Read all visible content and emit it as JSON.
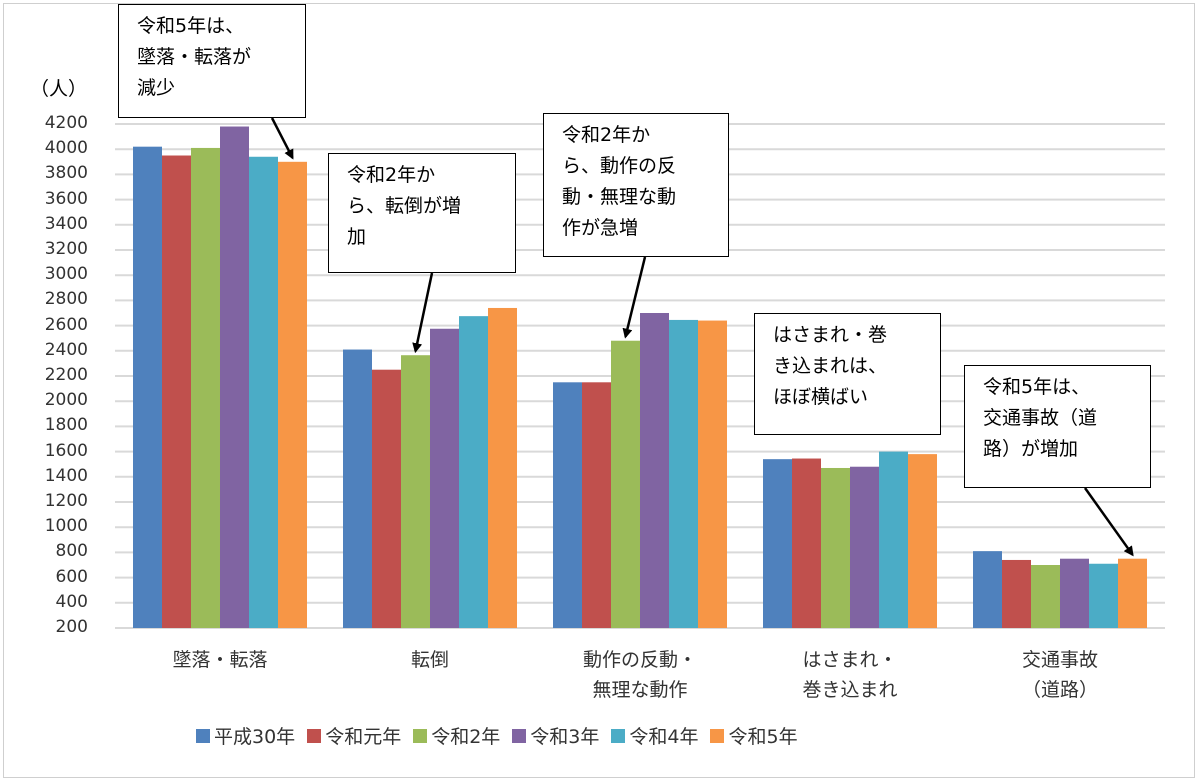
{
  "chart_data": {
    "type": "bar",
    "title": "",
    "ylabel": "（人）",
    "xlabel": "",
    "ylim": [
      200,
      4200
    ],
    "ytick_step": 200,
    "grid": true,
    "legend_position": "bottom",
    "categories": [
      "墜落・転落",
      "転倒",
      "動作の反動・\n無理な動作",
      "はさまれ・\n巻き込まれ",
      "交通事故\n（道路）"
    ],
    "series": [
      {
        "name": "平成30年",
        "color": "#4f81bd",
        "values": [
          4020,
          2410,
          2150,
          1540,
          810
        ]
      },
      {
        "name": "令和元年",
        "color": "#c0504d",
        "values": [
          3950,
          2250,
          2150,
          1545,
          740
        ]
      },
      {
        "name": "令和2年",
        "color": "#9bbb59",
        "values": [
          4010,
          2365,
          2480,
          1470,
          700
        ]
      },
      {
        "name": "令和3年",
        "color": "#8064a2",
        "values": [
          4180,
          2575,
          2700,
          1480,
          750
        ]
      },
      {
        "name": "令和4年",
        "color": "#4bacc6",
        "values": [
          3940,
          2675,
          2645,
          1600,
          710
        ]
      },
      {
        "name": "令和5年",
        "color": "#f79646",
        "values": [
          3900,
          2740,
          2640,
          1580,
          750
        ]
      }
    ],
    "annotations": [
      {
        "text": "令和5年は、\n墜落・転落が\n減少",
        "category": 0,
        "series": 5
      },
      {
        "text": "令和2年か\nら、転倒が増\n加",
        "category": 1,
        "series": 2
      },
      {
        "text": "令和2年か\nら、動作の反\n動・無理な動\n作が急増",
        "category": 2,
        "series": 2
      },
      {
        "text": "はさまれ・巻\nき込まれは、\nほぼ横ばい",
        "category": 3,
        "series": null
      },
      {
        "text": "令和5年は、\n交通事故（道\n路）が増加",
        "category": 4,
        "series": 5
      }
    ]
  }
}
